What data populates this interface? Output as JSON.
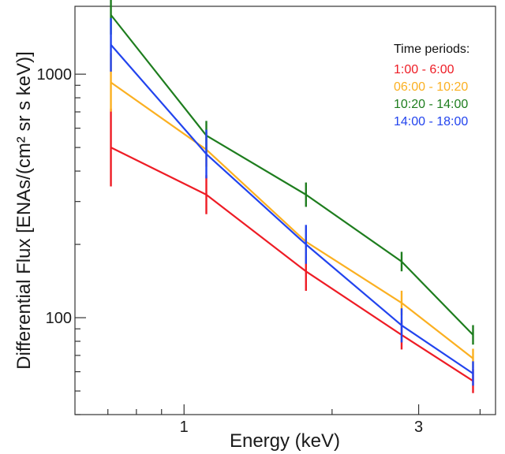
{
  "chart_data": {
    "type": "line",
    "xlabel": "Energy (keV)",
    "ylabel": "Differential Flux [ENAs/(cm² sr s keV)]",
    "y_scale": "log",
    "x_scale": "log",
    "xlim": [
      0.6,
      4.3
    ],
    "ylim": [
      40,
      1900
    ],
    "x_ticks": [
      1,
      3
    ],
    "y_ticks": [
      100,
      1000
    ],
    "x": [
      0.71,
      1.11,
      1.77,
      2.77,
      3.87
    ],
    "legend_title": "Time periods:",
    "legend_position": "top-right",
    "grid": false,
    "series": [
      {
        "name": "1:00 - 6:00",
        "color": "#ee1c25",
        "values": [
          500,
          320,
          155,
          85,
          55
        ],
        "err": [
          0.16,
          0.08,
          0.08,
          0.06,
          0.05
        ]
      },
      {
        "name": "06:00 - 10:20",
        "color": "#fbb021",
        "values": [
          925,
          490,
          205,
          115,
          68
        ],
        "err": [
          0.12,
          0.07,
          0.06,
          0.05,
          0.04
        ]
      },
      {
        "name": "10:20 - 14:00",
        "color": "#1e7d1e",
        "values": [
          1750,
          560,
          320,
          170,
          85
        ],
        "err": [
          0.08,
          0.06,
          0.05,
          0.04,
          0.04
        ]
      },
      {
        "name": "14:00 - 18:00",
        "color": "#2244ee",
        "values": [
          1320,
          470,
          200,
          93,
          59
        ],
        "err": [
          0.11,
          0.1,
          0.08,
          0.07,
          0.05
        ]
      }
    ]
  }
}
